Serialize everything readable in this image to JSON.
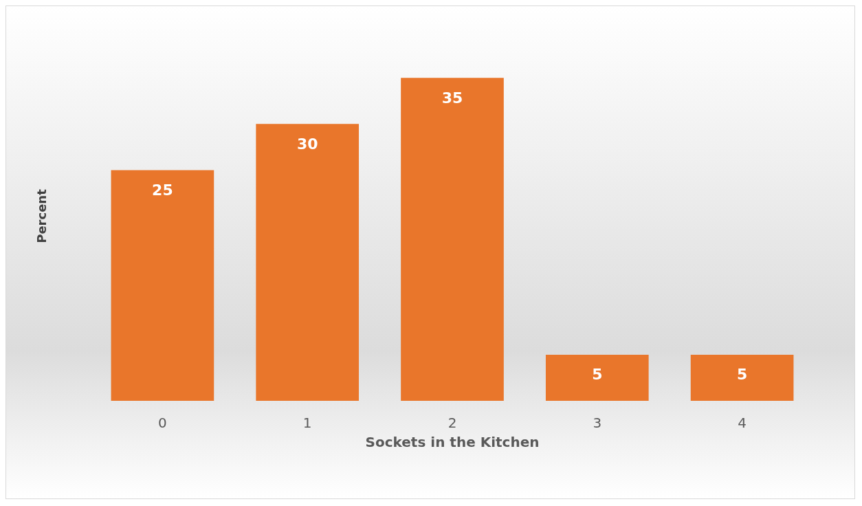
{
  "chart_data": {
    "type": "bar",
    "xlabel": "Sockets in the Kitchen",
    "ylabel": "Percent",
    "categories": [
      "0",
      "1",
      "2",
      "3",
      "4"
    ],
    "values": [
      25,
      30,
      35,
      5,
      5
    ],
    "color": "#e9762b",
    "data_labels": true
  }
}
